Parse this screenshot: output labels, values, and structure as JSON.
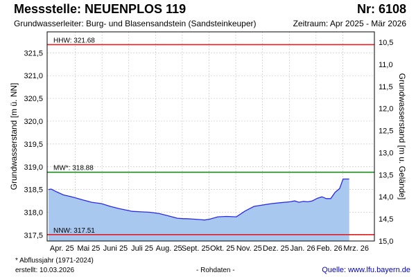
{
  "header": {
    "station_title": "Messstelle: NEUENPLOS 119",
    "station_number": "Nr: 6108",
    "aquifer": "Grundwasserleiter:  Burg- und Blasensandstein (Sandsteinkeuper)",
    "period": "Zeitraum: Apr 2025 - Mär 2026"
  },
  "footer": {
    "footnote": "* Abflussjahr (1971-2024)",
    "created": "erstellt:  10.03.2026",
    "rawdata": "- Rohdaten -",
    "source": "Quelle: www.lfu.bayern.de"
  },
  "colors": {
    "area_fill": "#a9c8f0",
    "line": "#2a2ae6",
    "hhw_nnw": "#e02020",
    "mw": "#1a8c1a",
    "grid": "#c8c8c8"
  },
  "chart_data": {
    "type": "area",
    "title": "",
    "ylabel": "Grundwasserstand [m ü. NN]",
    "y2label": "Grundwasserstand [m u. Gelände]",
    "ylim": [
      317.37,
      321.96
    ],
    "y2lim": [
      10.5,
      15.0
    ],
    "yticks": [
      "321,5",
      "321,0",
      "320,5",
      "320,0",
      "319,5",
      "319,0",
      "318,5",
      "318,0",
      "317,5"
    ],
    "y2ticks": [
      "10,5",
      "11,0",
      "11,5",
      "12,0",
      "12,5",
      "13,0",
      "13,5",
      "14,0",
      "14,5",
      "15,0"
    ],
    "months": [
      "Apr. 25",
      "Mai 25",
      "Juni 25",
      "Juli 25",
      "Aug. 25",
      "Sept. 25",
      "Okt. 25",
      "Nov. 25",
      "Dez. 25",
      "Jan. 26",
      "Feb. 26",
      "Mrz. 26"
    ],
    "grid": true,
    "reference_lines": [
      {
        "label": "HHW: 321.68",
        "value": 321.68,
        "color": "#e02020"
      },
      {
        "label": "MW*: 318.88",
        "value": 318.88,
        "color": "#1a8c1a"
      },
      {
        "label": "NNW: 317.51",
        "value": 317.51,
        "color": "#e02020"
      }
    ],
    "series": [
      {
        "x": [
          "2025-04-01",
          "2025-04-04",
          "2025-04-10",
          "2025-04-18",
          "2025-04-25",
          "2025-05-01",
          "2025-05-10",
          "2025-05-20",
          "2025-05-31",
          "2025-06-10",
          "2025-06-20",
          "2025-06-30",
          "2025-07-05",
          "2025-07-15",
          "2025-07-25",
          "2025-08-05",
          "2025-08-15",
          "2025-08-25",
          "2025-09-01",
          "2025-09-05",
          "2025-09-12",
          "2025-09-20",
          "2025-09-25",
          "2025-10-01",
          "2025-10-10",
          "2025-10-20",
          "2025-10-31",
          "2025-11-10",
          "2025-11-20",
          "2025-11-30",
          "2025-12-10",
          "2025-12-20",
          "2025-12-31",
          "2026-01-05",
          "2026-01-10",
          "2026-01-15",
          "2026-01-20",
          "2026-01-25",
          "2026-01-31",
          "2026-02-05",
          "2026-02-10",
          "2026-02-15",
          "2026-02-20",
          "2026-02-25",
          "2026-03-01",
          "2026-03-05",
          "2026-03-08"
        ],
        "y": [
          318.5,
          318.51,
          318.45,
          318.38,
          318.35,
          318.32,
          318.27,
          318.22,
          318.19,
          318.13,
          318.08,
          318.04,
          318.02,
          318.01,
          318.0,
          317.97,
          317.92,
          317.87,
          317.86,
          317.86,
          317.85,
          317.84,
          317.83,
          317.85,
          317.9,
          317.91,
          317.9,
          318.03,
          318.13,
          318.16,
          318.19,
          318.21,
          318.23,
          318.25,
          318.22,
          318.24,
          318.23,
          318.25,
          318.31,
          318.34,
          318.3,
          318.3,
          318.44,
          318.52,
          318.73,
          318.73,
          318.73
        ]
      }
    ]
  }
}
